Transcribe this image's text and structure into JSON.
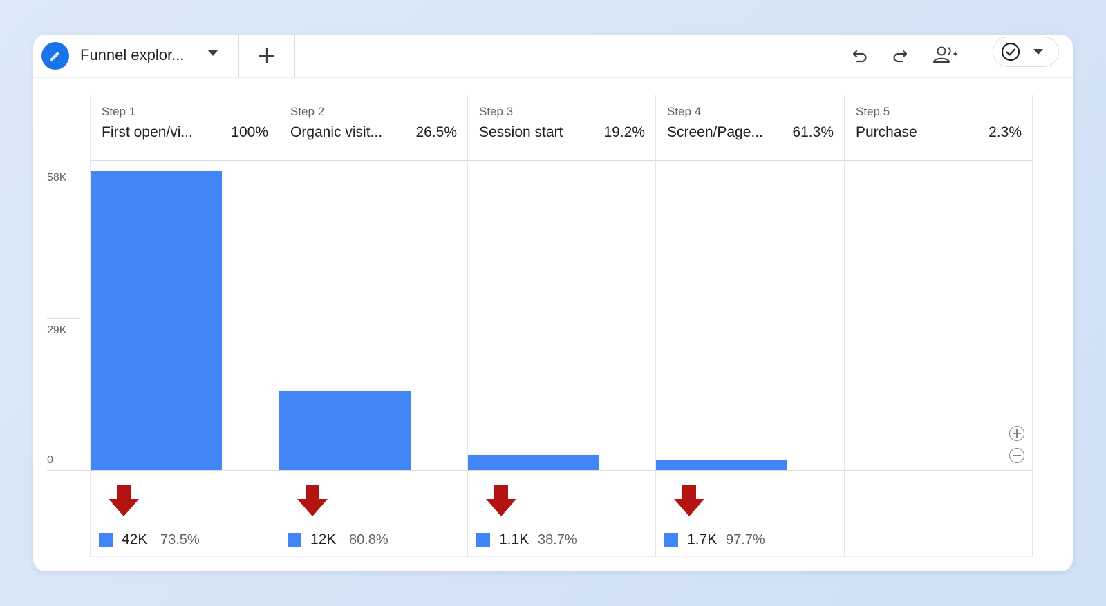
{
  "toolbar": {
    "tab_title": "Funnel explor...",
    "icons": {
      "edit": "pencil-icon",
      "tab_menu": "caret-down-icon",
      "new_tab": "plus-icon",
      "undo": "undo-icon",
      "redo": "redo-icon",
      "share": "share-users-icon",
      "status": "check-circle-icon",
      "status_menu": "caret-down-icon"
    }
  },
  "colors": {
    "bar": "#4285f4",
    "drop_arrow": "#b31412",
    "edit_badge": "#1a73e8"
  },
  "chart_data": {
    "type": "bar",
    "categories": [
      "First open/vi...",
      "Organic visit...",
      "Session start",
      "Screen/Page...",
      "Purchase"
    ],
    "step_labels": [
      "Step 1",
      "Step 2",
      "Step 3",
      "Step 4",
      "Step 5"
    ],
    "step_percents": [
      "100%",
      "26.5%",
      "19.2%",
      "61.3%",
      "2.3%"
    ],
    "values": [
      57000,
      15000,
      2900,
      1800,
      0
    ],
    "ylim": [
      0,
      58000
    ],
    "yticks": [
      {
        "value": 58000,
        "label": "58K"
      },
      {
        "value": 29000,
        "label": "29K"
      },
      {
        "value": 0,
        "label": "0"
      }
    ],
    "dropoffs": [
      {
        "value": "42K",
        "percent": "73.5%"
      },
      {
        "value": "12K",
        "percent": "80.8%"
      },
      {
        "value": "1.1K",
        "percent": "38.7%"
      },
      {
        "value": "1.7K",
        "percent": "97.7%"
      }
    ],
    "grid": true
  },
  "zoom": {
    "in_icon": "zoom-in-icon",
    "out_icon": "zoom-out-icon"
  }
}
